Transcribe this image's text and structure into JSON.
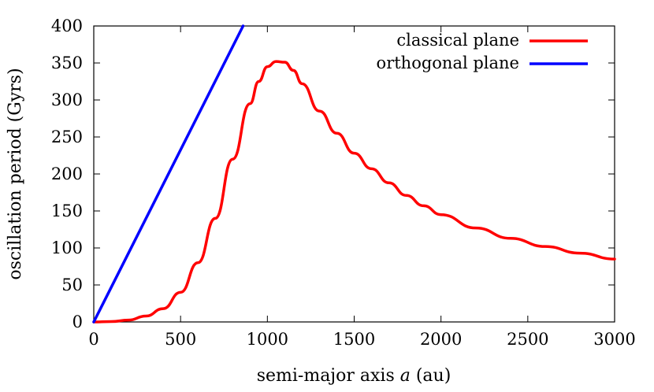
{
  "chart_data": {
    "type": "line",
    "xlabel_prefix": "semi-major axis ",
    "xlabel_var": "a",
    "xlabel_suffix": " (au)",
    "ylabel": "oscillation period (Gyrs)",
    "xlim": [
      0,
      3000
    ],
    "ylim": [
      0,
      400
    ],
    "xticks": [
      0,
      500,
      1000,
      1500,
      2000,
      2500,
      3000
    ],
    "yticks": [
      0,
      50,
      100,
      150,
      200,
      250,
      300,
      350,
      400
    ],
    "grid": false,
    "legend_position": "top-right",
    "series": [
      {
        "name": "classical plane",
        "color": "#ff0000",
        "x": [
          0,
          100,
          200,
          300,
          400,
          500,
          600,
          700,
          800,
          900,
          950,
          1000,
          1050,
          1100,
          1150,
          1200,
          1300,
          1400,
          1500,
          1600,
          1700,
          1800,
          1900,
          2000,
          2200,
          2400,
          2600,
          2800,
          3000
        ],
        "y": [
          0,
          0.5,
          2.5,
          8,
          18,
          40,
          80,
          140,
          220,
          295,
          325,
          345,
          352,
          351,
          340,
          322,
          285,
          255,
          228,
          207,
          188,
          171,
          157,
          145,
          127,
          113,
          102,
          93,
          85
        ]
      },
      {
        "name": "orthogonal plane",
        "color": "#0000ff",
        "x": [
          0,
          860
        ],
        "y": [
          0,
          400
        ]
      }
    ]
  }
}
